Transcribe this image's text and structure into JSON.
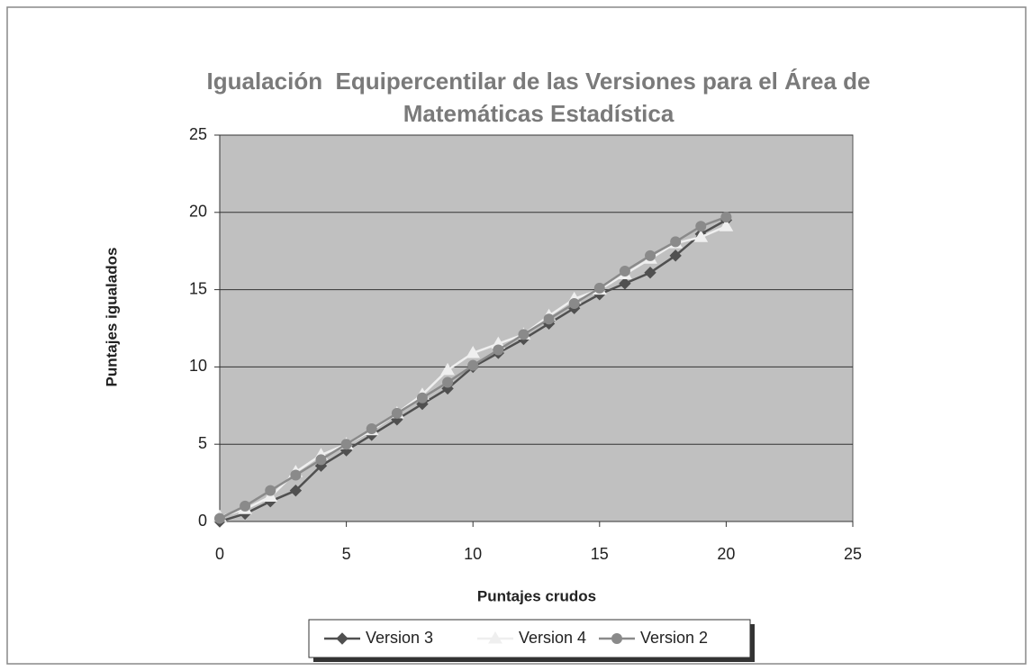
{
  "chart_data": {
    "type": "line",
    "title": "Igualación  Equipercentilar de las Versiones para el Área de Matemáticas Estadística",
    "xlabel": "Puntajes crudos",
    "ylabel": "Puntajes igualados",
    "x": [
      0,
      1,
      2,
      3,
      4,
      5,
      6,
      7,
      8,
      9,
      10,
      11,
      12,
      13,
      14,
      15,
      16,
      17,
      18,
      19,
      20
    ],
    "series": [
      {
        "name": "Version 3",
        "color": "#505050",
        "marker": "diamond",
        "values": [
          0,
          0.5,
          1.3,
          2,
          3.6,
          4.6,
          5.6,
          6.6,
          7.6,
          8.6,
          10,
          10.9,
          11.8,
          12.8,
          13.8,
          14.7,
          15.4,
          16.1,
          17.2,
          18.6,
          19.5
        ]
      },
      {
        "name": "Version 4",
        "color": "#efefef",
        "marker": "triangle",
        "values": [
          0.3,
          0.8,
          1.6,
          3.2,
          4.3,
          5,
          5.9,
          7,
          8.2,
          9.8,
          10.9,
          11.5,
          12.1,
          13.3,
          14.4,
          15,
          16,
          17,
          18,
          18.4,
          19.1
        ]
      },
      {
        "name": "Version 2",
        "color": "#8a8a8a",
        "marker": "circle",
        "values": [
          0.2,
          1,
          2,
          3,
          4,
          5,
          6,
          7,
          8,
          9,
          10.1,
          11.1,
          12.1,
          13.1,
          14.1,
          15.1,
          16.2,
          17.2,
          18.1,
          19.1,
          19.7
        ]
      }
    ],
    "xlim": [
      0,
      25
    ],
    "xticks": [
      0,
      5,
      10,
      15,
      20,
      25
    ],
    "ylim": [
      0,
      25
    ],
    "yticks": [
      0,
      5,
      10,
      15,
      20,
      25
    ],
    "grid": true,
    "legend": "bottom"
  }
}
